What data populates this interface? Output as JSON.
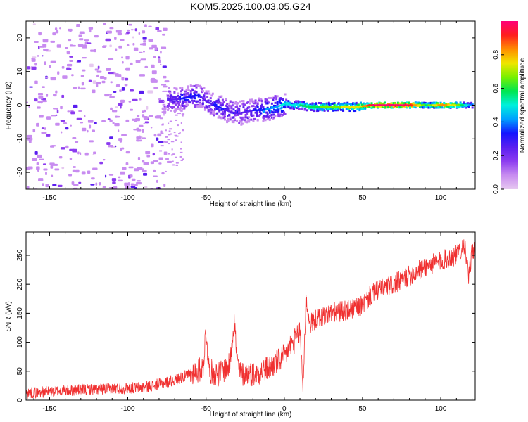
{
  "title": "KOM5.2025.100.03.05.G24",
  "colors": {
    "snr_line": "#f03030",
    "axis": "#000000",
    "background": "#ffffff",
    "colormap": [
      "#e6c8f0",
      "#c88cf0",
      "#8c3cf0",
      "#5a1ef0",
      "#1414ff",
      "#00a0ff",
      "#00f0dc",
      "#00e650",
      "#78f000",
      "#f0e600",
      "#ff8c00",
      "#ff1e1e",
      "#ff0078"
    ]
  },
  "chart_data": [
    {
      "type": "heatmap",
      "panel": "top",
      "xlabel": "Height of straight line (km)",
      "ylabel": "Frequency (Hz)",
      "xlim": [
        -165,
        122
      ],
      "ylim": [
        -25,
        25
      ],
      "xticks": [
        -150,
        -100,
        -50,
        0,
        50,
        100
      ],
      "yticks": [
        -20,
        -10,
        0,
        10,
        20
      ],
      "colorbar": {
        "label": "Normalized spectral amplitude",
        "range": [
          0,
          1
        ],
        "ticks": [
          "0.0",
          "0.2",
          "0.4",
          "0.6",
          "0.8"
        ],
        "tick_values": [
          0,
          0.2,
          0.4,
          0.6,
          0.8
        ]
      },
      "signal_track": [
        {
          "x": -75,
          "freq": 1.5,
          "amp": 0.25
        },
        {
          "x": -65,
          "freq": 2.0,
          "amp": 0.3
        },
        {
          "x": -60,
          "freq": 2.5,
          "amp": 0.35
        },
        {
          "x": -55,
          "freq": 3.0,
          "amp": 0.3
        },
        {
          "x": -50,
          "freq": 1.0,
          "amp": 0.25
        },
        {
          "x": -45,
          "freq": 0.0,
          "amp": 0.3
        },
        {
          "x": -40,
          "freq": -1.0,
          "amp": 0.3
        },
        {
          "x": -35,
          "freq": -2.0,
          "amp": 0.25
        },
        {
          "x": -30,
          "freq": -2.5,
          "amp": 0.25
        },
        {
          "x": -25,
          "freq": -2.0,
          "amp": 0.25
        },
        {
          "x": -20,
          "freq": -1.5,
          "amp": 0.3
        },
        {
          "x": -15,
          "freq": -1.5,
          "amp": 0.35
        },
        {
          "x": -10,
          "freq": -1.0,
          "amp": 0.4
        },
        {
          "x": -5,
          "freq": -0.5,
          "amp": 0.45
        },
        {
          "x": 0,
          "freq": 0.5,
          "amp": 0.5
        },
        {
          "x": 5,
          "freq": 0.0,
          "amp": 0.5
        },
        {
          "x": 10,
          "freq": 0.0,
          "amp": 0.55
        },
        {
          "x": 15,
          "freq": -0.5,
          "amp": 0.6
        },
        {
          "x": 20,
          "freq": -0.5,
          "amp": 0.6
        },
        {
          "x": 25,
          "freq": -0.5,
          "amp": 0.65
        },
        {
          "x": 30,
          "freq": -0.5,
          "amp": 0.7
        },
        {
          "x": 35,
          "freq": -0.5,
          "amp": 0.7
        },
        {
          "x": 40,
          "freq": -0.5,
          "amp": 0.75
        },
        {
          "x": 45,
          "freq": -0.5,
          "amp": 0.75
        },
        {
          "x": 50,
          "freq": -0.3,
          "amp": 0.8
        },
        {
          "x": 55,
          "freq": 0.0,
          "amp": 0.95
        },
        {
          "x": 60,
          "freq": 0.0,
          "amp": 1.0
        },
        {
          "x": 70,
          "freq": 0.0,
          "amp": 1.0
        },
        {
          "x": 80,
          "freq": 0.0,
          "amp": 0.95
        },
        {
          "x": 90,
          "freq": 0.0,
          "amp": 0.6
        },
        {
          "x": 100,
          "freq": 0.0,
          "amp": 0.85
        },
        {
          "x": 110,
          "freq": 0.0,
          "amp": 0.7
        },
        {
          "x": 120,
          "freq": 0.0,
          "amp": 0.35
        }
      ]
    },
    {
      "type": "line",
      "panel": "bottom",
      "xlabel": "Height of straight line (km)",
      "ylabel": "SNR (v/v)",
      "xlim": [
        -165,
        122
      ],
      "ylim": [
        0,
        290
      ],
      "xticks": [
        -150,
        -100,
        -50,
        0,
        50,
        100
      ],
      "yticks": [
        0,
        50,
        100,
        150,
        200,
        250
      ],
      "series": [
        {
          "x": [
            -165,
            -150,
            -130,
            -110,
            -90,
            -80,
            -70,
            -60,
            -52,
            -50,
            -48,
            -42,
            -35,
            -32,
            -30,
            -28,
            -20,
            -10,
            -5,
            0,
            3,
            6,
            9,
            10,
            12,
            14,
            16,
            20,
            30,
            40,
            48,
            52,
            55,
            60,
            70,
            80,
            90,
            100,
            110,
            115,
            118,
            120,
            122
          ],
          "y": [
            12,
            15,
            18,
            20,
            22,
            28,
            35,
            45,
            55,
            120,
            50,
            45,
            60,
            140,
            65,
            45,
            45,
            55,
            65,
            75,
            90,
            100,
            110,
            120,
            25,
            180,
            130,
            140,
            150,
            155,
            160,
            170,
            180,
            190,
            200,
            215,
            230,
            240,
            250,
            270,
            210,
            260,
            255
          ]
        }
      ]
    }
  ]
}
